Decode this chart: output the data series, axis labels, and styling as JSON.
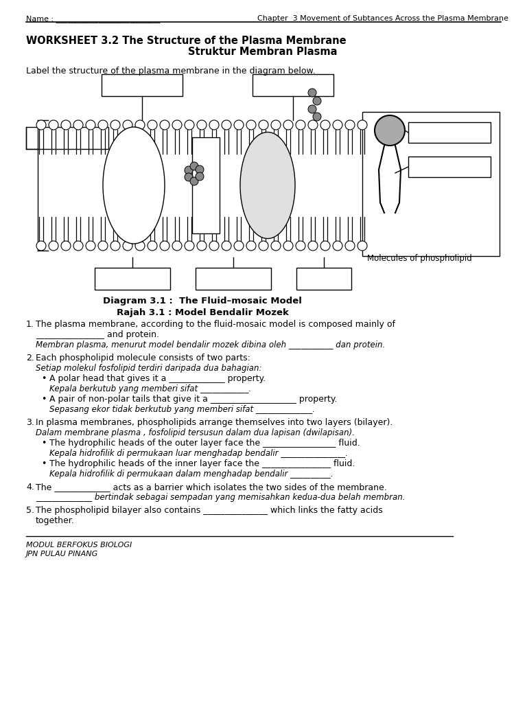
{
  "bg_color": "#ffffff",
  "header_chapter": "Chapter  3 Movement of Subtances Across the Plasma Membrane",
  "title_bold": "WORKSHEET 3.2 The Structure of the Plasma Membrane",
  "title_sub": "Struktur Membran Plasma",
  "label_instruction": "Label the structure of the plasma membrane in the diagram below.",
  "diagram_caption1": "Diagram 3.1 :  The Fluid–mosaic Model",
  "diagram_caption2": "Rajah 3.1 : Model Bendalir Mozek",
  "phospholipid_label": "Molecules of phospholipid",
  "questions": [
    {
      "num": "1.",
      "text": "The plasma membrane, according to the fluid-mosaic model is composed mainly of",
      "line2": "________________ and protein.",
      "italic": "Membran plasma, menurut model bendalir mozek dibina oleh ___________ dan protein."
    },
    {
      "num": "2.",
      "text": "Each phospholipid molecule consists of two parts:",
      "italic": "Setiap molekul fosfolipid terdiri daripada dua bahagian:",
      "bullets": [
        {
          "text": "A polar head that gives it a _____________ property.",
          "italic": "Kepala berkutub yang memberi sifat ____________."
        },
        {
          "text": "A pair of non-polar tails that give it a ____________________ property.",
          "italic": "Sepasang ekor tidak berkutub yang memberi sifat ______________."
        }
      ]
    },
    {
      "num": "3.",
      "text": "In plasma membranes, phospholipids arrange themselves into two layers (bilayer).",
      "italic": "Dalam membrane plasma , fosfolipid tersusun dalam dua lapisan (dwilapisan).",
      "bullets": [
        {
          "text": "The hydrophilic heads of the outer layer face the _________________ fluid.",
          "italic": "Kepala hidrofilik di permukaan luar menghadap bendalir ________________."
        },
        {
          "text": "The hydrophilic heads of the inner layer face the ________________ fluid.",
          "italic": "Kepala hidrofilik di permukaan dalam menghadap bendalir __________."
        }
      ]
    },
    {
      "num": "4.",
      "text": "The _____________ acts as a barrier which isolates the two sides of the membrane.",
      "italic": "______________ bertindak sebagai sempadan yang memisahkan kedua-dua belah membran."
    },
    {
      "num": "5.",
      "text": "The phospholipid bilayer also contains _______________ which links the fatty acids",
      "text2": "together."
    }
  ],
  "footer1": "MODUL BERFOKUS BIOLOGI",
  "footer2": "JPN PULAU PINANG"
}
